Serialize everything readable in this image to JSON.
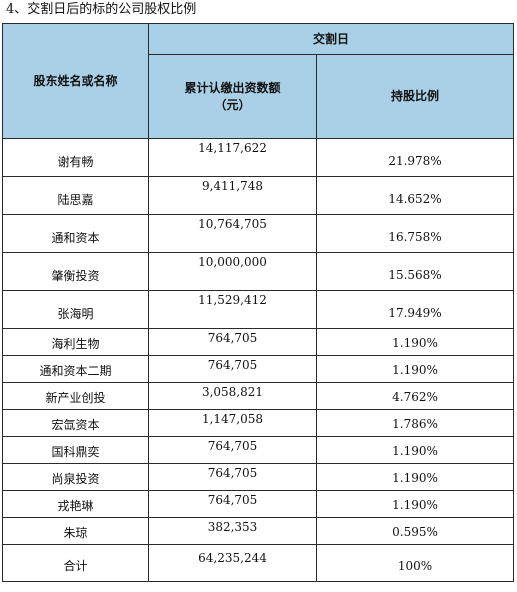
{
  "heading": "4、交割日后的标的公司股权比例",
  "table": {
    "header": {
      "shareholder": "股东姓名或名称",
      "group": "交割日",
      "amount_line1": "累计认缴出资数额",
      "amount_line2": "（元）",
      "ratio": "持股比例"
    },
    "rows": [
      {
        "name": "谢有畅",
        "amount": "14,117,622",
        "ratio": "21.978%"
      },
      {
        "name": "陆思嘉",
        "amount": "9,411,748",
        "ratio": "14.652%"
      },
      {
        "name": "通和资本",
        "amount": "10,764,705",
        "ratio": "16.758%"
      },
      {
        "name": "肇衡投资",
        "amount": "10,000,000",
        "ratio": "15.568%"
      },
      {
        "name": "张海明",
        "amount": "11,529,412",
        "ratio": "17.949%"
      },
      {
        "name": "海利生物",
        "amount": "764,705",
        "ratio": "1.190%"
      },
      {
        "name": "通和资本二期",
        "amount": "764,705",
        "ratio": "1.190%"
      },
      {
        "name": "新产业创投",
        "amount": "3,058,821",
        "ratio": "4.762%"
      },
      {
        "name": "宏氙资本",
        "amount": "1,147,058",
        "ratio": "1.786%"
      },
      {
        "name": "国科鼎奕",
        "amount": "764,705",
        "ratio": "1.190%"
      },
      {
        "name": "尚泉投资",
        "amount": "764,705",
        "ratio": "1.190%"
      },
      {
        "name": "戎艳琳",
        "amount": "764,705",
        "ratio": "1.190%"
      },
      {
        "name": "朱琼",
        "amount": "382,353",
        "ratio": "0.595%"
      }
    ],
    "total": {
      "name": "合计",
      "amount": "64,235,244",
      "ratio": "100%"
    }
  }
}
